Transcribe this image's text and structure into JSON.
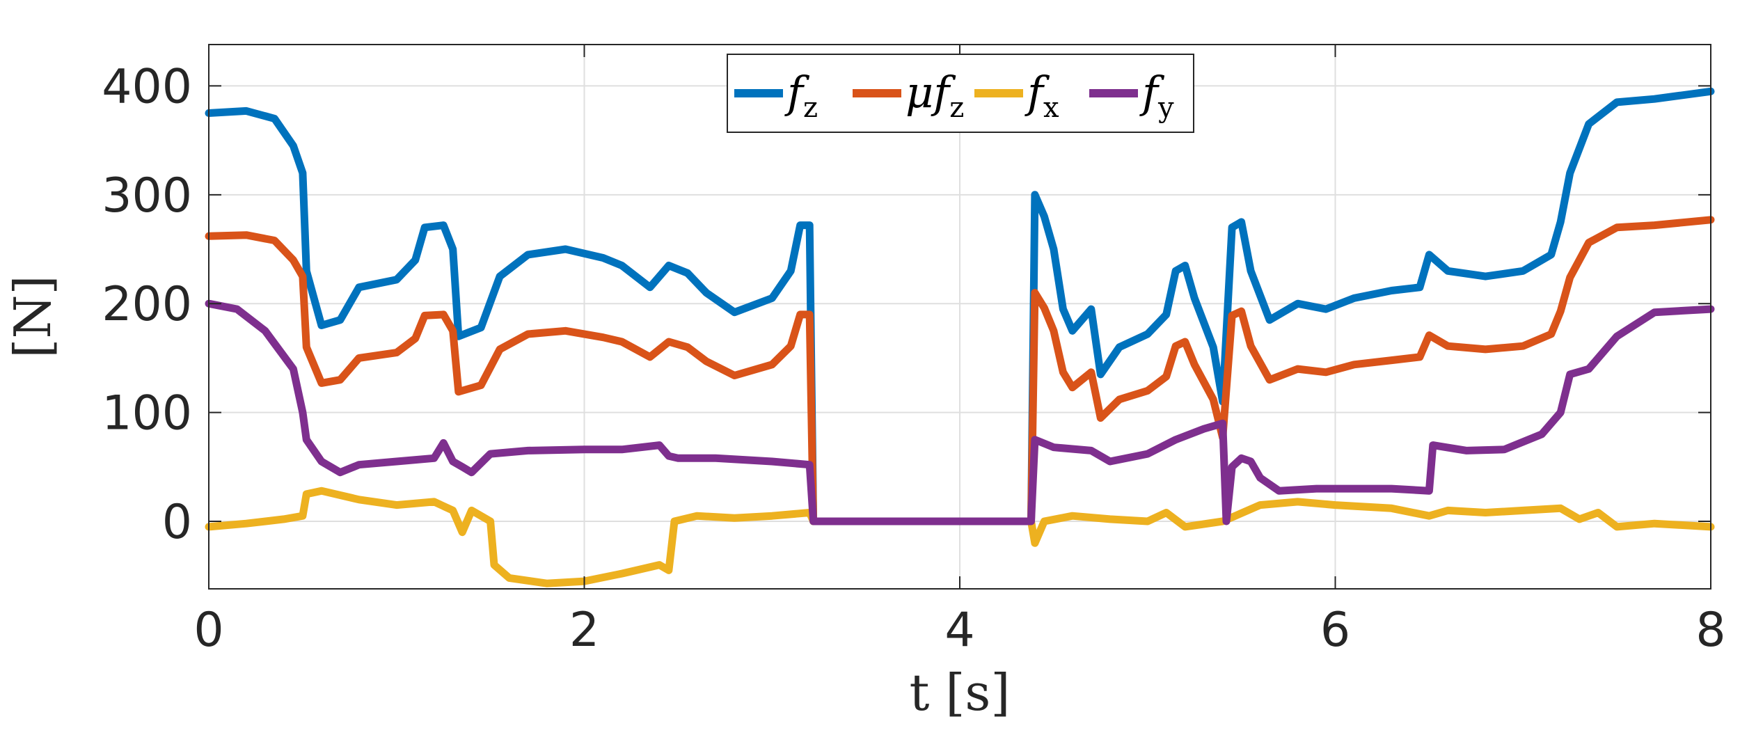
{
  "chart_data": {
    "type": "line",
    "xlabel": "t [s]",
    "ylabel": "[N]",
    "xlim": [
      0,
      8
    ],
    "ylim": [
      -62,
      438
    ],
    "xticks": [
      0,
      2,
      4,
      6,
      8
    ],
    "yticks": [
      0,
      100,
      200,
      300,
      400
    ],
    "xtick_labels": [
      "0",
      "2",
      "4",
      "6",
      "8"
    ],
    "ytick_labels": [
      "0",
      "100",
      "200",
      "300",
      "400"
    ],
    "grid": true,
    "legend_position": "top-center",
    "series": [
      {
        "name": "f_z",
        "label_main": "f",
        "label_sub": "z",
        "color": "#0072BD",
        "points": [
          [
            0,
            375
          ],
          [
            0.2,
            377
          ],
          [
            0.35,
            370
          ],
          [
            0.45,
            345
          ],
          [
            0.5,
            320
          ],
          [
            0.52,
            230
          ],
          [
            0.6,
            180
          ],
          [
            0.7,
            185
          ],
          [
            0.8,
            215
          ],
          [
            1.0,
            222
          ],
          [
            1.1,
            240
          ],
          [
            1.15,
            270
          ],
          [
            1.25,
            272
          ],
          [
            1.3,
            250
          ],
          [
            1.33,
            170
          ],
          [
            1.45,
            178
          ],
          [
            1.55,
            225
          ],
          [
            1.7,
            245
          ],
          [
            1.9,
            250
          ],
          [
            2.1,
            242
          ],
          [
            2.2,
            235
          ],
          [
            2.35,
            215
          ],
          [
            2.45,
            235
          ],
          [
            2.55,
            228
          ],
          [
            2.65,
            210
          ],
          [
            2.8,
            192
          ],
          [
            3.0,
            205
          ],
          [
            3.1,
            230
          ],
          [
            3.15,
            272
          ],
          [
            3.2,
            272
          ],
          [
            3.22,
            0
          ],
          [
            4.38,
            0
          ],
          [
            4.4,
            300
          ],
          [
            4.45,
            280
          ],
          [
            4.5,
            250
          ],
          [
            4.55,
            195
          ],
          [
            4.6,
            175
          ],
          [
            4.7,
            195
          ],
          [
            4.75,
            135
          ],
          [
            4.85,
            160
          ],
          [
            5.0,
            172
          ],
          [
            5.1,
            190
          ],
          [
            5.15,
            230
          ],
          [
            5.2,
            235
          ],
          [
            5.25,
            205
          ],
          [
            5.35,
            160
          ],
          [
            5.4,
            110
          ],
          [
            5.45,
            270
          ],
          [
            5.5,
            275
          ],
          [
            5.55,
            230
          ],
          [
            5.65,
            185
          ],
          [
            5.8,
            200
          ],
          [
            5.95,
            195
          ],
          [
            6.1,
            205
          ],
          [
            6.3,
            212
          ],
          [
            6.45,
            215
          ],
          [
            6.5,
            245
          ],
          [
            6.6,
            230
          ],
          [
            6.8,
            225
          ],
          [
            7.0,
            230
          ],
          [
            7.15,
            245
          ],
          [
            7.2,
            275
          ],
          [
            7.25,
            320
          ],
          [
            7.35,
            365
          ],
          [
            7.5,
            385
          ],
          [
            7.7,
            388
          ],
          [
            8.0,
            395
          ]
        ]
      },
      {
        "name": "μf_z",
        "label_main": "μf",
        "label_sub": "z",
        "color": "#D95319",
        "points": [
          [
            0,
            262
          ],
          [
            0.2,
            263
          ],
          [
            0.35,
            258
          ],
          [
            0.45,
            240
          ],
          [
            0.5,
            225
          ],
          [
            0.52,
            160
          ],
          [
            0.6,
            127
          ],
          [
            0.7,
            130
          ],
          [
            0.8,
            150
          ],
          [
            1.0,
            155
          ],
          [
            1.1,
            168
          ],
          [
            1.15,
            189
          ],
          [
            1.25,
            190
          ],
          [
            1.3,
            175
          ],
          [
            1.33,
            119
          ],
          [
            1.45,
            125
          ],
          [
            1.55,
            158
          ],
          [
            1.7,
            172
          ],
          [
            1.9,
            175
          ],
          [
            2.1,
            169
          ],
          [
            2.2,
            165
          ],
          [
            2.35,
            151
          ],
          [
            2.45,
            165
          ],
          [
            2.55,
            160
          ],
          [
            2.65,
            147
          ],
          [
            2.8,
            134
          ],
          [
            3.0,
            144
          ],
          [
            3.1,
            161
          ],
          [
            3.15,
            190
          ],
          [
            3.2,
            190
          ],
          [
            3.22,
            0
          ],
          [
            4.38,
            0
          ],
          [
            4.4,
            210
          ],
          [
            4.45,
            196
          ],
          [
            4.5,
            175
          ],
          [
            4.55,
            137
          ],
          [
            4.6,
            123
          ],
          [
            4.7,
            137
          ],
          [
            4.75,
            95
          ],
          [
            4.85,
            112
          ],
          [
            5.0,
            120
          ],
          [
            5.1,
            133
          ],
          [
            5.15,
            161
          ],
          [
            5.2,
            165
          ],
          [
            5.25,
            144
          ],
          [
            5.35,
            112
          ],
          [
            5.4,
            77
          ],
          [
            5.45,
            189
          ],
          [
            5.5,
            193
          ],
          [
            5.55,
            161
          ],
          [
            5.65,
            130
          ],
          [
            5.8,
            140
          ],
          [
            5.95,
            137
          ],
          [
            6.1,
            144
          ],
          [
            6.3,
            148
          ],
          [
            6.45,
            151
          ],
          [
            6.5,
            171
          ],
          [
            6.6,
            161
          ],
          [
            6.8,
            158
          ],
          [
            7.0,
            161
          ],
          [
            7.15,
            172
          ],
          [
            7.2,
            193
          ],
          [
            7.25,
            224
          ],
          [
            7.35,
            256
          ],
          [
            7.5,
            270
          ],
          [
            7.7,
            272
          ],
          [
            8.0,
            277
          ]
        ]
      },
      {
        "name": "f_x",
        "label_main": "f",
        "label_sub": "x",
        "color": "#EDB120",
        "points": [
          [
            0,
            -5
          ],
          [
            0.2,
            -2
          ],
          [
            0.4,
            2
          ],
          [
            0.5,
            5
          ],
          [
            0.52,
            25
          ],
          [
            0.6,
            28
          ],
          [
            0.8,
            20
          ],
          [
            1.0,
            15
          ],
          [
            1.2,
            18
          ],
          [
            1.3,
            10
          ],
          [
            1.35,
            -10
          ],
          [
            1.4,
            10
          ],
          [
            1.5,
            0
          ],
          [
            1.52,
            -40
          ],
          [
            1.6,
            -52
          ],
          [
            1.8,
            -57
          ],
          [
            2.0,
            -55
          ],
          [
            2.2,
            -48
          ],
          [
            2.4,
            -40
          ],
          [
            2.45,
            -45
          ],
          [
            2.48,
            0
          ],
          [
            2.6,
            5
          ],
          [
            2.8,
            3
          ],
          [
            3.0,
            5
          ],
          [
            3.2,
            8
          ],
          [
            3.22,
            0
          ],
          [
            4.38,
            0
          ],
          [
            4.4,
            -20
          ],
          [
            4.45,
            0
          ],
          [
            4.6,
            5
          ],
          [
            4.8,
            2
          ],
          [
            5.0,
            0
          ],
          [
            5.1,
            8
          ],
          [
            5.2,
            -5
          ],
          [
            5.4,
            0
          ],
          [
            5.6,
            15
          ],
          [
            5.8,
            18
          ],
          [
            6.0,
            15
          ],
          [
            6.3,
            12
          ],
          [
            6.5,
            5
          ],
          [
            6.6,
            10
          ],
          [
            6.8,
            8
          ],
          [
            7.0,
            10
          ],
          [
            7.2,
            12
          ],
          [
            7.3,
            2
          ],
          [
            7.4,
            8
          ],
          [
            7.5,
            -5
          ],
          [
            7.7,
            -2
          ],
          [
            8.0,
            -5
          ]
        ]
      },
      {
        "name": "f_y",
        "label_main": "f",
        "label_sub": "y",
        "color": "#7E2F8E",
        "points": [
          [
            0,
            200
          ],
          [
            0.15,
            195
          ],
          [
            0.3,
            175
          ],
          [
            0.45,
            140
          ],
          [
            0.5,
            100
          ],
          [
            0.52,
            75
          ],
          [
            0.6,
            55
          ],
          [
            0.7,
            45
          ],
          [
            0.8,
            52
          ],
          [
            1.0,
            55
          ],
          [
            1.2,
            58
          ],
          [
            1.25,
            72
          ],
          [
            1.3,
            55
          ],
          [
            1.35,
            50
          ],
          [
            1.4,
            45
          ],
          [
            1.5,
            62
          ],
          [
            1.7,
            65
          ],
          [
            2.0,
            66
          ],
          [
            2.2,
            66
          ],
          [
            2.4,
            70
          ],
          [
            2.45,
            60
          ],
          [
            2.5,
            58
          ],
          [
            2.7,
            58
          ],
          [
            3.0,
            55
          ],
          [
            3.2,
            52
          ],
          [
            3.22,
            0
          ],
          [
            4.38,
            0
          ],
          [
            4.4,
            75
          ],
          [
            4.5,
            68
          ],
          [
            4.7,
            65
          ],
          [
            4.8,
            55
          ],
          [
            5.0,
            62
          ],
          [
            5.15,
            75
          ],
          [
            5.3,
            85
          ],
          [
            5.4,
            90
          ],
          [
            5.42,
            0
          ],
          [
            5.45,
            50
          ],
          [
            5.5,
            58
          ],
          [
            5.55,
            55
          ],
          [
            5.6,
            40
          ],
          [
            5.7,
            28
          ],
          [
            5.9,
            30
          ],
          [
            6.1,
            30
          ],
          [
            6.3,
            30
          ],
          [
            6.5,
            28
          ],
          [
            6.52,
            70
          ],
          [
            6.7,
            65
          ],
          [
            6.9,
            66
          ],
          [
            7.1,
            80
          ],
          [
            7.2,
            100
          ],
          [
            7.25,
            135
          ],
          [
            7.35,
            140
          ],
          [
            7.5,
            170
          ],
          [
            7.7,
            192
          ],
          [
            8.0,
            195
          ]
        ]
      }
    ]
  }
}
